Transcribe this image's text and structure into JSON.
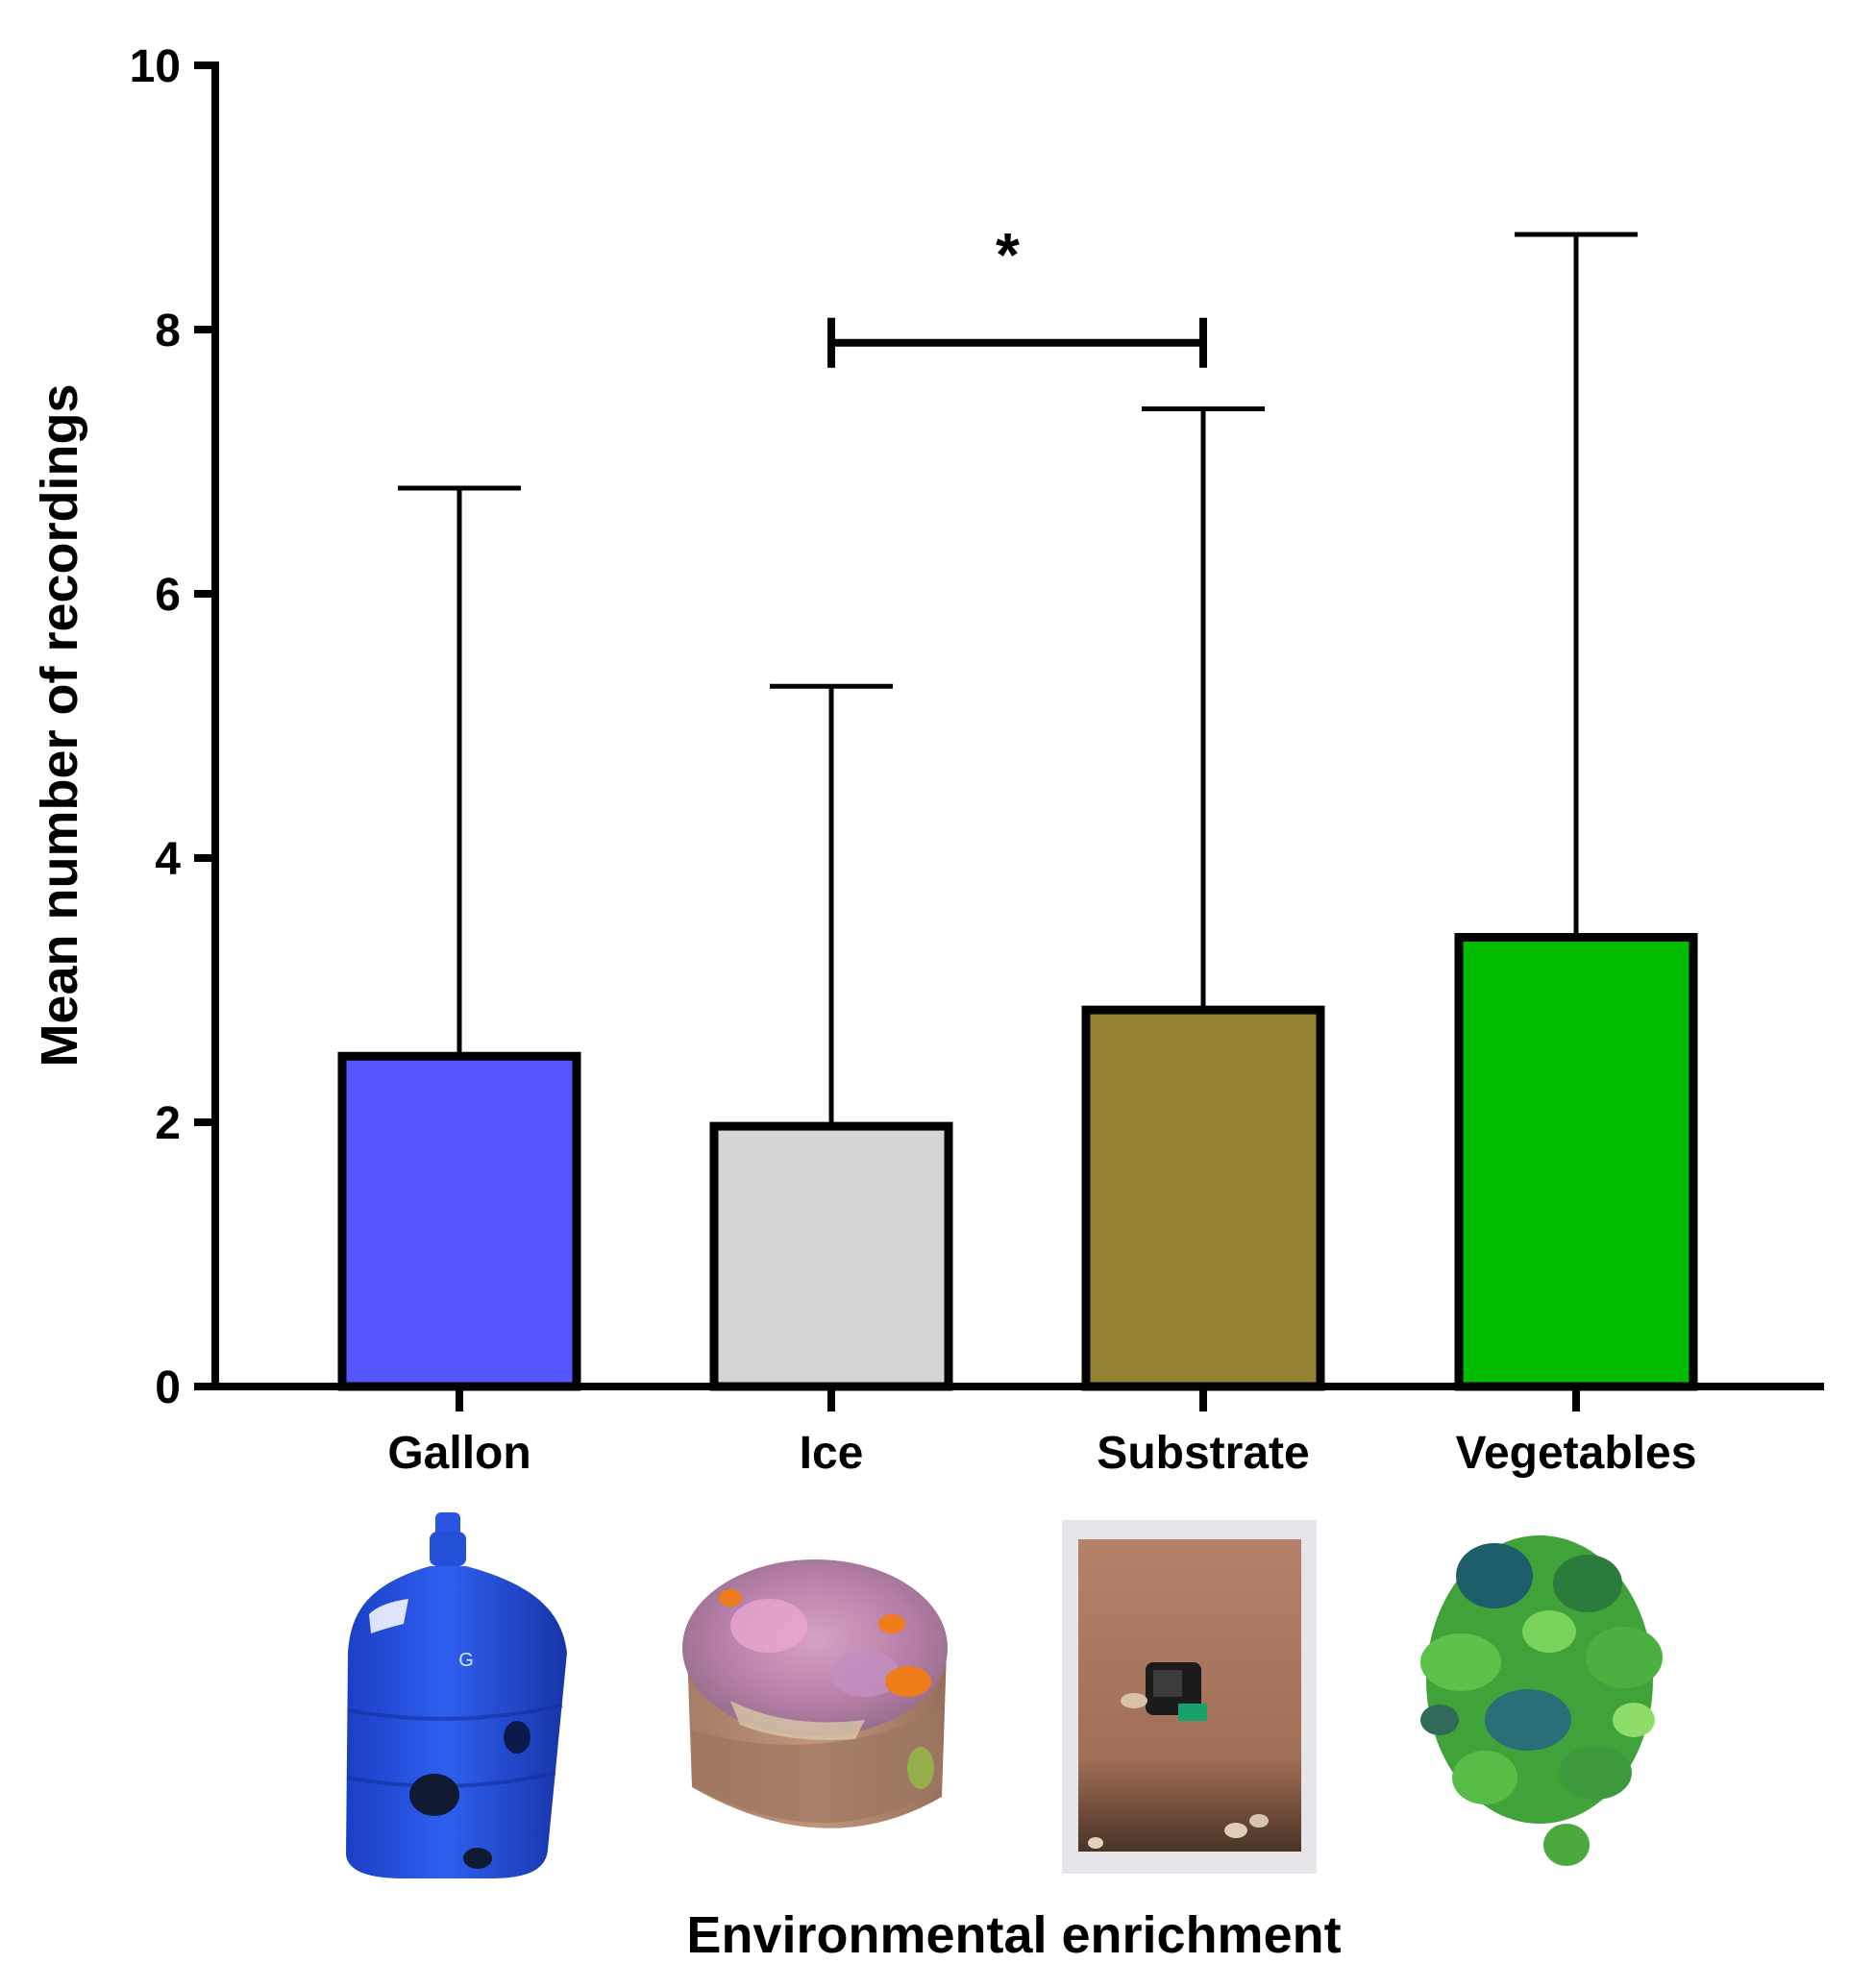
{
  "chart_data": {
    "type": "bar",
    "title": "",
    "xlabel": "Environmental enrichment",
    "ylabel": "Mean number of recordings",
    "ylim": [
      0,
      10
    ],
    "yticks": [
      0,
      2,
      4,
      6,
      8,
      10
    ],
    "grid": false,
    "categories": [
      "Gallon",
      "Ice",
      "Substrate",
      "Vegetables"
    ],
    "values": [
      2.5,
      1.97,
      2.85,
      3.4
    ],
    "error_upper": [
      6.8,
      5.3,
      7.4,
      8.72
    ],
    "colors": [
      "#5555ff",
      "#d4d4d4",
      "#948132",
      "#00bb00"
    ],
    "significance": [
      {
        "from": "Ice",
        "to": "Substrate",
        "label": "*",
        "y": 7.9
      }
    ],
    "category_images": [
      {
        "category": "Gallon",
        "depicts": "blue water gallon with holes"
      },
      {
        "category": "Ice",
        "depicts": "frozen ice block with embedded food"
      },
      {
        "category": "Substrate",
        "depicts": "box filled with sand substrate"
      },
      {
        "category": "Vegetables",
        "depicts": "pile of leafy green vegetables"
      }
    ]
  }
}
